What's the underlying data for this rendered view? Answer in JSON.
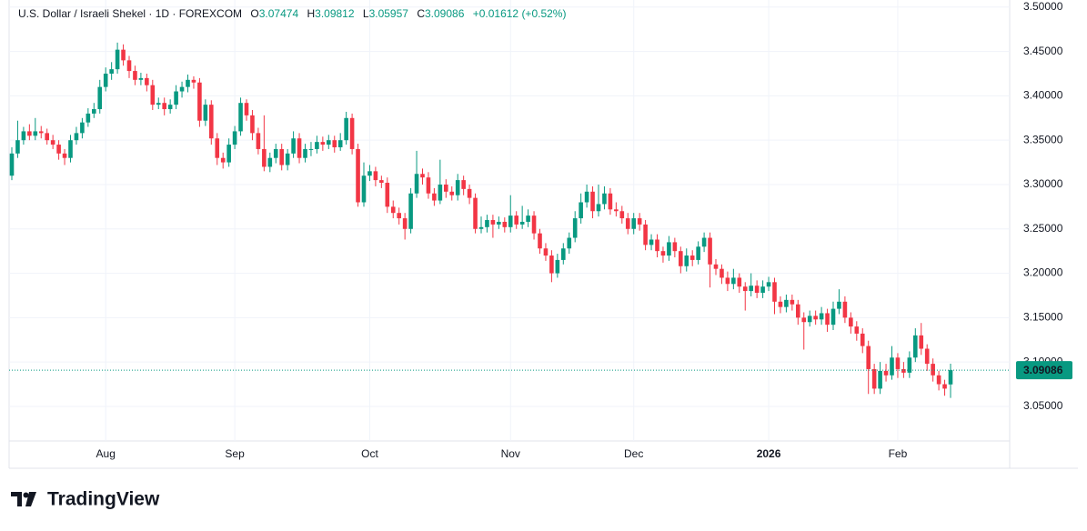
{
  "chart_data": {
    "type": "candlestick",
    "title": "U.S. Dollar / Israeli Shekel · 1D · FOREXCOM",
    "ohlc_labels": [
      "O",
      "H",
      "L",
      "C"
    ],
    "change": "+0.01612 (+0.52%)",
    "brand": "TradingView",
    "up_color": "#089981",
    "down_color": "#f23645",
    "ylim": [
      3.011,
      3.508
    ],
    "yticks": [
      {
        "value": 3.05,
        "label": "3.05000"
      },
      {
        "value": 3.1,
        "label": "3.10000"
      },
      {
        "value": 3.15,
        "label": "3.15000"
      },
      {
        "value": 3.2,
        "label": "3.20000"
      },
      {
        "value": 3.25,
        "label": "3.25000"
      },
      {
        "value": 3.3,
        "label": "3.30000"
      },
      {
        "value": 3.35,
        "label": "3.35000"
      },
      {
        "value": 3.4,
        "label": "3.40000"
      },
      {
        "value": 3.45,
        "label": "3.45000"
      },
      {
        "value": 3.5,
        "label": "3.50000"
      }
    ],
    "grid": true,
    "categories": [
      null,
      null,
      null,
      null,
      null,
      null,
      null,
      null,
      null,
      null,
      null,
      null,
      null,
      null,
      null,
      null,
      "Aug",
      null,
      null,
      null,
      null,
      null,
      null,
      null,
      null,
      null,
      null,
      null,
      null,
      null,
      null,
      null,
      null,
      null,
      null,
      null,
      null,
      null,
      "Sep",
      null,
      null,
      null,
      null,
      null,
      null,
      null,
      null,
      null,
      null,
      null,
      null,
      null,
      null,
      null,
      null,
      null,
      null,
      null,
      null,
      null,
      null,
      "Oct",
      null,
      null,
      null,
      null,
      null,
      null,
      null,
      null,
      null,
      null,
      null,
      null,
      null,
      null,
      null,
      null,
      null,
      null,
      null,
      null,
      null,
      null,
      null,
      "Nov",
      null,
      null,
      null,
      null,
      null,
      null,
      null,
      null,
      null,
      null,
      null,
      null,
      null,
      null,
      null,
      null,
      null,
      null,
      null,
      null,
      "Dec",
      null,
      null,
      null,
      null,
      null,
      null,
      null,
      null,
      null,
      null,
      null,
      null,
      null,
      null,
      null,
      null,
      null,
      null,
      null,
      null,
      null,
      null,
      "2026",
      null,
      null,
      null,
      null,
      null,
      null,
      null,
      null,
      null,
      null,
      null,
      null,
      null,
      null,
      null,
      null,
      null,
      null,
      null,
      null,
      null,
      "Feb",
      null,
      null,
      null,
      null,
      null,
      null,
      null,
      null,
      null
    ],
    "ohlc": [
      [
        3.31,
        3.342,
        3.305,
        3.335
      ],
      [
        3.335,
        3.372,
        3.33,
        3.35
      ],
      [
        3.35,
        3.365,
        3.345,
        3.36
      ],
      [
        3.36,
        3.368,
        3.35,
        3.355
      ],
      [
        3.355,
        3.375,
        3.35,
        3.36
      ],
      [
        3.36,
        3.366,
        3.352,
        3.358
      ],
      [
        3.358,
        3.363,
        3.345,
        3.35
      ],
      [
        3.35,
        3.356,
        3.34,
        3.345
      ],
      [
        3.345,
        3.35,
        3.328,
        3.335
      ],
      [
        3.335,
        3.34,
        3.322,
        3.33
      ],
      [
        3.33,
        3.356,
        3.325,
        3.35
      ],
      [
        3.35,
        3.365,
        3.345,
        3.358
      ],
      [
        3.358,
        3.375,
        3.352,
        3.37
      ],
      [
        3.37,
        3.386,
        3.365,
        3.38
      ],
      [
        3.38,
        3.392,
        3.375,
        3.385
      ],
      [
        3.385,
        3.418,
        3.38,
        3.41
      ],
      [
        3.41,
        3.432,
        3.405,
        3.425
      ],
      [
        3.425,
        3.438,
        3.418,
        3.43
      ],
      [
        3.43,
        3.46,
        3.425,
        3.452
      ],
      [
        3.452,
        3.458,
        3.434,
        3.44
      ],
      [
        3.44,
        3.445,
        3.42,
        3.428
      ],
      [
        3.428,
        3.434,
        3.412,
        3.418
      ],
      [
        3.418,
        3.426,
        3.412,
        3.42
      ],
      [
        3.42,
        3.425,
        3.405,
        3.412
      ],
      [
        3.412,
        3.418,
        3.384,
        3.39
      ],
      [
        3.39,
        3.398,
        3.385,
        3.392
      ],
      [
        3.392,
        3.398,
        3.378,
        3.385
      ],
      [
        3.385,
        3.396,
        3.38,
        3.39
      ],
      [
        3.39,
        3.412,
        3.385,
        3.405
      ],
      [
        3.405,
        3.416,
        3.398,
        3.41
      ],
      [
        3.41,
        3.424,
        3.404,
        3.418
      ],
      [
        3.418,
        3.422,
        3.408,
        3.415
      ],
      [
        3.415,
        3.42,
        3.365,
        3.372
      ],
      [
        3.372,
        3.396,
        3.366,
        3.39
      ],
      [
        3.39,
        3.395,
        3.345,
        3.352
      ],
      [
        3.352,
        3.358,
        3.322,
        3.33
      ],
      [
        3.33,
        3.336,
        3.318,
        3.325
      ],
      [
        3.325,
        3.352,
        3.32,
        3.345
      ],
      [
        3.345,
        3.366,
        3.34,
        3.36
      ],
      [
        3.36,
        3.398,
        3.355,
        3.392
      ],
      [
        3.392,
        3.396,
        3.372,
        3.378
      ],
      [
        3.378,
        3.384,
        3.35,
        3.358
      ],
      [
        3.358,
        3.364,
        3.334,
        3.34
      ],
      [
        3.34,
        3.378,
        3.315,
        3.32
      ],
      [
        3.32,
        3.336,
        3.314,
        3.33
      ],
      [
        3.33,
        3.346,
        3.324,
        3.34
      ],
      [
        3.34,
        3.346,
        3.316,
        3.322
      ],
      [
        3.322,
        3.34,
        3.316,
        3.335
      ],
      [
        3.335,
        3.36,
        3.33,
        3.352
      ],
      [
        3.352,
        3.358,
        3.324,
        3.33
      ],
      [
        3.33,
        3.346,
        3.325,
        3.34
      ],
      [
        3.34,
        3.348,
        3.332,
        3.34
      ],
      [
        3.34,
        3.355,
        3.335,
        3.348
      ],
      [
        3.348,
        3.354,
        3.338,
        3.345
      ],
      [
        3.345,
        3.356,
        3.34,
        3.35
      ],
      [
        3.35,
        3.355,
        3.336,
        3.342
      ],
      [
        3.342,
        3.358,
        3.338,
        3.35
      ],
      [
        3.35,
        3.382,
        3.345,
        3.375
      ],
      [
        3.375,
        3.38,
        3.334,
        3.34
      ],
      [
        3.34,
        3.346,
        3.275,
        3.28
      ],
      [
        3.28,
        3.325,
        3.275,
        3.31
      ],
      [
        3.31,
        3.322,
        3.304,
        3.315
      ],
      [
        3.315,
        3.32,
        3.298,
        3.305
      ],
      [
        3.305,
        3.31,
        3.296,
        3.302
      ],
      [
        3.302,
        3.308,
        3.268,
        3.275
      ],
      [
        3.275,
        3.282,
        3.262,
        3.268
      ],
      [
        3.268,
        3.274,
        3.255,
        3.262
      ],
      [
        3.262,
        3.268,
        3.238,
        3.25
      ],
      [
        3.25,
        3.296,
        3.245,
        3.29
      ],
      [
        3.29,
        3.338,
        3.285,
        3.312
      ],
      [
        3.312,
        3.318,
        3.3,
        3.308
      ],
      [
        3.308,
        3.314,
        3.284,
        3.29
      ],
      [
        3.29,
        3.296,
        3.276,
        3.282
      ],
      [
        3.282,
        3.328,
        3.278,
        3.3
      ],
      [
        3.3,
        3.306,
        3.285,
        3.292
      ],
      [
        3.292,
        3.298,
        3.282,
        3.288
      ],
      [
        3.288,
        3.312,
        3.282,
        3.305
      ],
      [
        3.305,
        3.31,
        3.288,
        3.295
      ],
      [
        3.295,
        3.3,
        3.278,
        3.285
      ],
      [
        3.285,
        3.29,
        3.245,
        3.25
      ],
      [
        3.25,
        3.264,
        3.245,
        3.252
      ],
      [
        3.252,
        3.266,
        3.246,
        3.26
      ],
      [
        3.26,
        3.266,
        3.24,
        3.255
      ],
      [
        3.255,
        3.264,
        3.25,
        3.258
      ],
      [
        3.258,
        3.263,
        3.246,
        3.252
      ],
      [
        3.252,
        3.288,
        3.246,
        3.265
      ],
      [
        3.265,
        3.27,
        3.25,
        3.255
      ],
      [
        3.255,
        3.276,
        3.25,
        3.258
      ],
      [
        3.258,
        3.272,
        3.252,
        3.265
      ],
      [
        3.265,
        3.27,
        3.238,
        3.245
      ],
      [
        3.245,
        3.25,
        3.222,
        3.228
      ],
      [
        3.228,
        3.234,
        3.214,
        3.22
      ],
      [
        3.22,
        3.226,
        3.19,
        3.2
      ],
      [
        3.2,
        3.222,
        3.195,
        3.215
      ],
      [
        3.215,
        3.234,
        3.21,
        3.228
      ],
      [
        3.228,
        3.246,
        3.222,
        3.24
      ],
      [
        3.24,
        3.27,
        3.235,
        3.262
      ],
      [
        3.262,
        3.29,
        3.256,
        3.28
      ],
      [
        3.28,
        3.3,
        3.274,
        3.292
      ],
      [
        3.292,
        3.298,
        3.262,
        3.27
      ],
      [
        3.27,
        3.3,
        3.264,
        3.278
      ],
      [
        3.278,
        3.298,
        3.272,
        3.29
      ],
      [
        3.29,
        3.296,
        3.266,
        3.272
      ],
      [
        3.272,
        3.28,
        3.264,
        3.27
      ],
      [
        3.27,
        3.276,
        3.256,
        3.262
      ],
      [
        3.262,
        3.268,
        3.244,
        3.25
      ],
      [
        3.25,
        3.268,
        3.244,
        3.262
      ],
      [
        3.262,
        3.268,
        3.248,
        3.255
      ],
      [
        3.255,
        3.26,
        3.226,
        3.232
      ],
      [
        3.232,
        3.244,
        3.226,
        3.238
      ],
      [
        3.238,
        3.244,
        3.218,
        3.225
      ],
      [
        3.225,
        3.23,
        3.212,
        3.22
      ],
      [
        3.22,
        3.242,
        3.214,
        3.235
      ],
      [
        3.235,
        3.24,
        3.218,
        3.225
      ],
      [
        3.225,
        3.23,
        3.2,
        3.208
      ],
      [
        3.208,
        3.228,
        3.202,
        3.22
      ],
      [
        3.22,
        3.226,
        3.208,
        3.215
      ],
      [
        3.215,
        3.236,
        3.21,
        3.23
      ],
      [
        3.23,
        3.246,
        3.224,
        3.24
      ],
      [
        3.24,
        3.246,
        3.184,
        3.21
      ],
      [
        3.21,
        3.216,
        3.198,
        3.205
      ],
      [
        3.205,
        3.21,
        3.188,
        3.195
      ],
      [
        3.195,
        3.202,
        3.18,
        3.188
      ],
      [
        3.188,
        3.205,
        3.182,
        3.195
      ],
      [
        3.195,
        3.2,
        3.178,
        3.185
      ],
      [
        3.185,
        3.19,
        3.158,
        3.18
      ],
      [
        3.18,
        3.2,
        3.174,
        3.186
      ],
      [
        3.186,
        3.192,
        3.172,
        3.178
      ],
      [
        3.178,
        3.192,
        3.172,
        3.185
      ],
      [
        3.185,
        3.196,
        3.18,
        3.19
      ],
      [
        3.19,
        3.195,
        3.154,
        3.168
      ],
      [
        3.168,
        3.174,
        3.155,
        3.162
      ],
      [
        3.162,
        3.176,
        3.156,
        3.17
      ],
      [
        3.17,
        3.176,
        3.158,
        3.165
      ],
      [
        3.165,
        3.17,
        3.142,
        3.15
      ],
      [
        3.15,
        3.156,
        3.114,
        3.145
      ],
      [
        3.145,
        3.158,
        3.14,
        3.152
      ],
      [
        3.152,
        3.158,
        3.142,
        3.148
      ],
      [
        3.148,
        3.162,
        3.142,
        3.155
      ],
      [
        3.155,
        3.16,
        3.134,
        3.142
      ],
      [
        3.142,
        3.168,
        3.136,
        3.16
      ],
      [
        3.16,
        3.182,
        3.154,
        3.168
      ],
      [
        3.168,
        3.174,
        3.144,
        3.15
      ],
      [
        3.15,
        3.156,
        3.132,
        3.14
      ],
      [
        3.14,
        3.146,
        3.124,
        3.132
      ],
      [
        3.132,
        3.138,
        3.11,
        3.118
      ],
      [
        3.118,
        3.124,
        3.064,
        3.092
      ],
      [
        3.092,
        3.098,
        3.064,
        3.07
      ],
      [
        3.07,
        3.1,
        3.064,
        3.09
      ],
      [
        3.09,
        3.098,
        3.078,
        3.085
      ],
      [
        3.085,
        3.118,
        3.08,
        3.105
      ],
      [
        3.105,
        3.11,
        3.082,
        3.092
      ],
      [
        3.092,
        3.1,
        3.082,
        3.088
      ],
      [
        3.088,
        3.112,
        3.082,
        3.105
      ],
      [
        3.105,
        3.138,
        3.1,
        3.13
      ],
      [
        3.13,
        3.144,
        3.108,
        3.115
      ],
      [
        3.115,
        3.12,
        3.09,
        3.098
      ],
      [
        3.098,
        3.104,
        3.078,
        3.085
      ],
      [
        3.085,
        3.09,
        3.068,
        3.075
      ],
      [
        3.075,
        3.08,
        3.062,
        3.07
      ],
      [
        3.07474,
        3.09812,
        3.05957,
        3.09086
      ]
    ]
  }
}
